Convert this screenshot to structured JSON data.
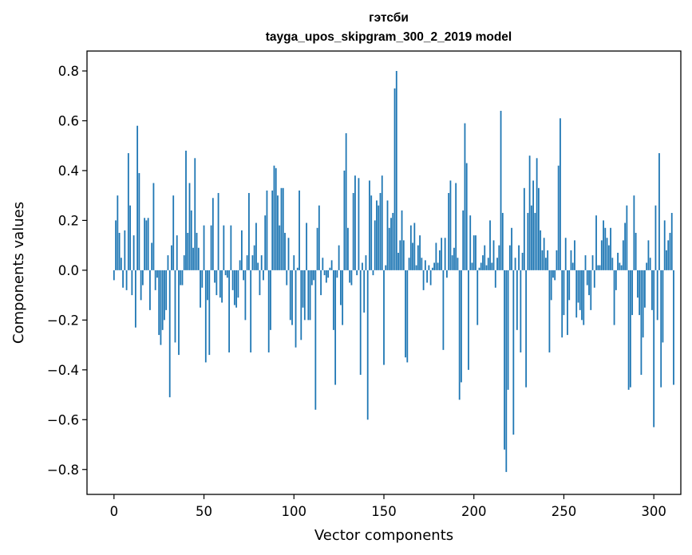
{
  "chart_data": {
    "type": "bar",
    "title": "гэтсби",
    "subtitle": "tayga_upos_skipgram_300_2_2019 model",
    "xlabel": "Vector components",
    "ylabel": "Components values",
    "xlim": [
      -15,
      315
    ],
    "ylim": [
      -0.9,
      0.88
    ],
    "x_ticks": [
      0,
      50,
      100,
      150,
      200,
      250,
      300
    ],
    "y_ticks": [
      -0.8,
      -0.6,
      -0.4,
      -0.2,
      0.0,
      0.2,
      0.4,
      0.6,
      0.8
    ],
    "x_tick_labels": [
      "0",
      "50",
      "100",
      "150",
      "200",
      "250",
      "300"
    ],
    "y_tick_labels": [
      "−0.8",
      "−0.6",
      "−0.4",
      "−0.2",
      "0.0",
      "0.2",
      "0.4",
      "0.6",
      "0.8"
    ],
    "bar_color": "#1f77b4",
    "grid": false,
    "values": [
      -0.04,
      0.2,
      0.3,
      0.15,
      0.05,
      -0.07,
      0.16,
      -0.08,
      0.47,
      0.26,
      -0.1,
      0.14,
      -0.23,
      0.58,
      0.39,
      -0.12,
      -0.06,
      0.21,
      0.2,
      0.21,
      -0.16,
      0.11,
      0.35,
      -0.08,
      -0.03,
      -0.26,
      -0.3,
      -0.24,
      -0.2,
      -0.16,
      0.06,
      -0.51,
      0.1,
      0.3,
      -0.29,
      0.14,
      -0.34,
      -0.06,
      -0.06,
      0.06,
      0.48,
      0.15,
      0.35,
      0.24,
      0.09,
      0.45,
      0.15,
      0.09,
      -0.15,
      -0.07,
      0.18,
      -0.37,
      -0.12,
      -0.34,
      0.18,
      0.29,
      -0.05,
      -0.1,
      0.31,
      -0.11,
      -0.13,
      0.18,
      -0.02,
      -0.03,
      -0.33,
      0.18,
      -0.08,
      -0.14,
      -0.15,
      -0.11,
      0.04,
      0.16,
      -0.04,
      -0.2,
      0.06,
      0.31,
      -0.33,
      0.06,
      0.1,
      0.19,
      0.03,
      -0.1,
      0.06,
      -0.04,
      0.22,
      0.32,
      -0.33,
      -0.24,
      0.32,
      0.42,
      0.41,
      0.3,
      0.18,
      0.33,
      0.33,
      0.15,
      -0.06,
      0.13,
      -0.2,
      -0.22,
      0.06,
      -0.31,
      0.01,
      0.32,
      -0.28,
      -0.15,
      -0.2,
      0.19,
      -0.2,
      -0.2,
      -0.06,
      -0.04,
      -0.56,
      0.17,
      0.26,
      -0.1,
      0.05,
      -0.02,
      -0.05,
      -0.03,
      0.01,
      0.04,
      -0.24,
      -0.46,
      -0.03,
      0.1,
      -0.14,
      -0.22,
      0.4,
      0.55,
      0.17,
      -0.05,
      -0.06,
      0.31,
      0.38,
      -0.02,
      0.37,
      -0.42,
      0.03,
      -0.17,
      0.06,
      -0.6,
      0.36,
      0.3,
      -0.02,
      0.2,
      0.28,
      0.26,
      0.31,
      0.38,
      -0.38,
      0.02,
      0.28,
      0.17,
      0.21,
      0.23,
      0.73,
      0.8,
      0.07,
      0.12,
      0.24,
      0.12,
      -0.35,
      -0.37,
      0.05,
      0.18,
      0.11,
      0.19,
      0.02,
      0.1,
      0.14,
      0.05,
      -0.08,
      0.04,
      -0.05,
      0.02,
      -0.06,
      0.01,
      0.03,
      0.11,
      0.03,
      0.08,
      0.13,
      -0.32,
      0.13,
      -0.03,
      0.31,
      0.36,
      0.06,
      0.09,
      0.35,
      0.05,
      -0.52,
      -0.45,
      0.24,
      0.59,
      0.43,
      -0.4,
      0.22,
      0.03,
      0.14,
      0.14,
      -0.22,
      0.01,
      0.03,
      0.06,
      0.1,
      0.02,
      0.05,
      0.2,
      0.03,
      0.12,
      -0.07,
      0.05,
      0.1,
      0.64,
      0.23,
      -0.72,
      -0.81,
      -0.48,
      0.1,
      0.17,
      -0.66,
      0.05,
      -0.24,
      0.1,
      -0.33,
      0.07,
      0.33,
      -0.47,
      0.23,
      0.46,
      0.26,
      0.36,
      0.23,
      0.45,
      0.33,
      0.16,
      0.08,
      0.13,
      0.05,
      0.08,
      -0.33,
      -0.12,
      -0.03,
      -0.04,
      0.08,
      0.42,
      0.61,
      -0.27,
      -0.18,
      0.13,
      -0.26,
      -0.12,
      0.08,
      0.03,
      0.12,
      -0.19,
      -0.13,
      -0.16,
      -0.2,
      -0.22,
      0.06,
      -0.06,
      -0.1,
      -0.16,
      0.06,
      -0.07,
      0.22,
      0.02,
      0.02,
      0.12,
      0.2,
      0.17,
      0.13,
      0.1,
      0.17,
      0.05,
      -0.22,
      -0.08,
      0.07,
      0.03,
      0.02,
      0.12,
      0.19,
      0.26,
      -0.48,
      -0.47,
      -0.18,
      0.3,
      0.15,
      -0.11,
      -0.18,
      -0.42,
      -0.27,
      -0.15,
      0.03,
      0.12,
      0.05,
      -0.16,
      -0.63,
      0.26,
      -0.2,
      0.47,
      -0.47,
      -0.29,
      0.2,
      0.08,
      0.12,
      0.15,
      0.23,
      -0.46
    ]
  }
}
